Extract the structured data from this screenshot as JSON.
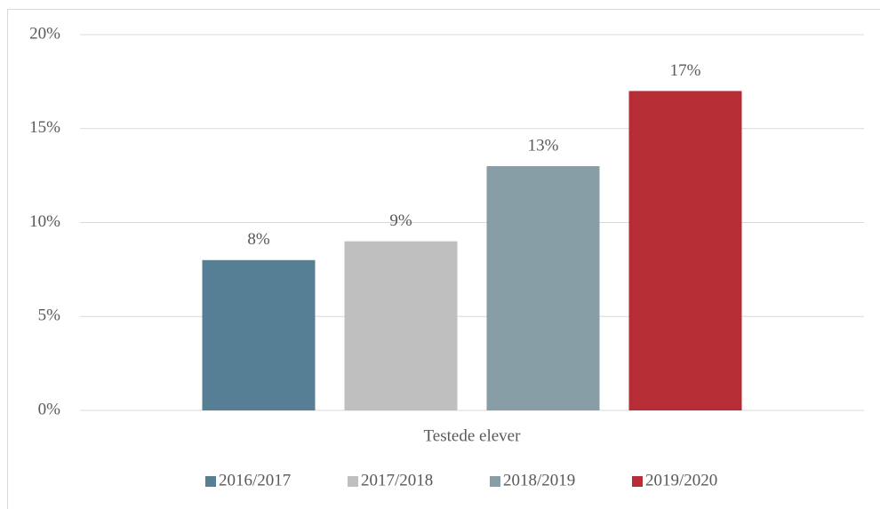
{
  "chart_data": {
    "type": "bar",
    "categories": [
      "Testede elever"
    ],
    "series": [
      {
        "name": "2016/2017",
        "color": "#567f96",
        "values": [
          8
        ],
        "value_labels": [
          "8%"
        ]
      },
      {
        "name": "2017/2018",
        "color": "#bfbfbf",
        "values": [
          9
        ],
        "value_labels": [
          "9%"
        ]
      },
      {
        "name": "2018/2019",
        "color": "#879ea6",
        "values": [
          13
        ],
        "value_labels": [
          "13%"
        ]
      },
      {
        "name": "2019/2020",
        "color": "#b72d35",
        "values": [
          17
        ],
        "value_labels": [
          "17%"
        ]
      }
    ],
    "ylim": [
      0,
      20
    ],
    "yticks": [
      {
        "value": 0,
        "label": "0%"
      },
      {
        "value": 5,
        "label": "5%"
      },
      {
        "value": 10,
        "label": "10%"
      },
      {
        "value": 15,
        "label": "15%"
      },
      {
        "value": 20,
        "label": "20%"
      }
    ],
    "grid": true,
    "legend": "bottom"
  }
}
